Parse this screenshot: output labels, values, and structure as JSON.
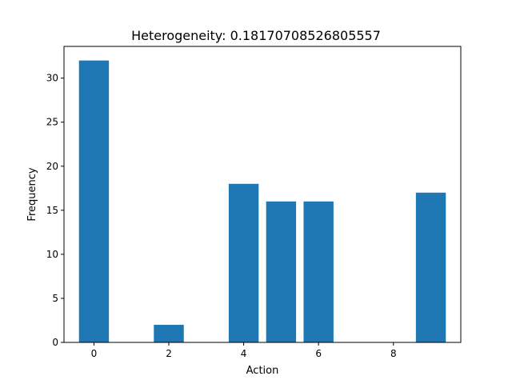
{
  "chart_data": {
    "type": "bar",
    "title": "Heterogeneity: 0.18170708526805557",
    "xlabel": "Action",
    "ylabel": "Frequency",
    "x": [
      0,
      1,
      2,
      3,
      4,
      5,
      6,
      7,
      8,
      9
    ],
    "values": [
      32,
      0,
      2,
      0,
      18,
      16,
      16,
      0,
      0,
      17
    ],
    "xlim": [
      -0.8,
      9.8
    ],
    "ylim": [
      0,
      33.6
    ],
    "xticks": [
      0,
      2,
      4,
      6,
      8
    ],
    "yticks": [
      0,
      5,
      10,
      15,
      20,
      25,
      30
    ],
    "grid": false,
    "legend": "none",
    "bar_color": "#1f77b4"
  }
}
